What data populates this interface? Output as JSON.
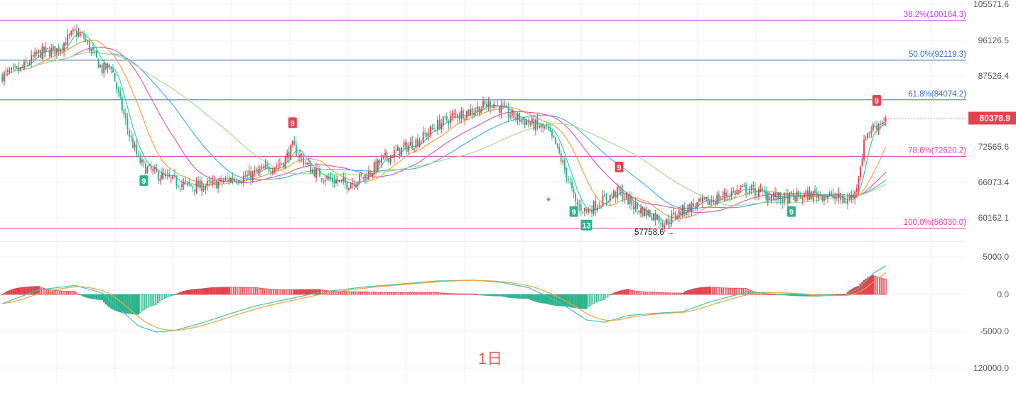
{
  "chart_data": {
    "type": "candlestick",
    "period_label": "1日",
    "price_axis": {
      "ticks": [
        "105571.6",
        "96126.5",
        "87526.4",
        "72565.6",
        "66073.4",
        "60162.1"
      ],
      "current_price": "80378.9",
      "ylim": [
        54000,
        106500
      ]
    },
    "macd_axis": {
      "ticks": [
        "5000.0",
        "0.0",
        "-5000.0",
        "120000.0"
      ]
    },
    "fib_levels": [
      {
        "label": "38.2%(100164.3)",
        "value": 100164.3,
        "color": "#b23bd1"
      },
      {
        "label": "50.0%(92119.3)",
        "value": 92119.3,
        "color": "#3a6fb5"
      },
      {
        "label": "61.8%(84074.2)",
        "value": 84074.2,
        "color": "#3a6fb5"
      },
      {
        "label": "78.6%(72620.2)",
        "value": 72620.2,
        "color": "#d63fa9"
      },
      {
        "label": "100.0%(58030.0)",
        "value": 58030.0,
        "color": "#d63fa9"
      }
    ],
    "low_annotation": "57758.6 →",
    "td_markers": [
      {
        "text": "9",
        "kind": "sell",
        "bar": 160
      },
      {
        "text": "9",
        "kind": "buy",
        "bar": 78
      },
      {
        "text": "9",
        "kind": "sell",
        "bar": 340
      },
      {
        "text": "9",
        "kind": "buy",
        "bar": 315
      },
      {
        "text": "13",
        "kind": "buy",
        "bar": 322
      },
      {
        "text": "9",
        "kind": "buy",
        "bar": 435
      },
      {
        "text": "9",
        "kind": "sell",
        "bar": 482
      }
    ],
    "colors": {
      "up": "#e2434f",
      "down": "#2bb48e",
      "ma_fast": "#3fc6b0",
      "ma_mid": "#f2a23a",
      "ma_slow": "#e05ab0",
      "ma_long": "#4aaee6",
      "ma_longest": "#a6dc8f",
      "macd_line": "#3fc6b0",
      "signal_line": "#f2a23a"
    },
    "close_path": [
      [
        0,
        89000
      ],
      [
        10,
        90200
      ],
      [
        20,
        93500
      ],
      [
        30,
        94200
      ],
      [
        40,
        97800
      ],
      [
        45,
        96600
      ],
      [
        55,
        90200
      ],
      [
        60,
        91000
      ],
      [
        64,
        85000
      ],
      [
        70,
        77000
      ],
      [
        75,
        72000
      ],
      [
        78,
        70500
      ],
      [
        85,
        69000
      ],
      [
        95,
        67500
      ],
      [
        105,
        66500
      ],
      [
        115,
        66800
      ],
      [
        125,
        68000
      ],
      [
        135,
        68500
      ],
      [
        145,
        70000
      ],
      [
        155,
        71500
      ],
      [
        160,
        74500
      ],
      [
        170,
        70000
      ],
      [
        180,
        68000
      ],
      [
        190,
        67000
      ],
      [
        200,
        68500
      ],
      [
        210,
        72000
      ],
      [
        220,
        74000
      ],
      [
        230,
        76000
      ],
      [
        240,
        79000
      ],
      [
        250,
        81000
      ],
      [
        260,
        82000
      ],
      [
        270,
        83500
      ],
      [
        280,
        81000
      ],
      [
        290,
        79500
      ],
      [
        300,
        78000
      ],
      [
        305,
        75000
      ],
      [
        312,
        68000
      ],
      [
        316,
        63000
      ],
      [
        322,
        61500
      ],
      [
        330,
        63500
      ],
      [
        340,
        65500
      ],
      [
        350,
        62000
      ],
      [
        360,
        60500
      ],
      [
        365,
        59000
      ],
      [
        372,
        61000
      ],
      [
        380,
        62500
      ],
      [
        390,
        63500
      ],
      [
        400,
        65000
      ],
      [
        410,
        66000
      ],
      [
        420,
        65000
      ],
      [
        430,
        64000
      ],
      [
        440,
        64500
      ],
      [
        450,
        65000
      ],
      [
        460,
        64200
      ],
      [
        465,
        63600
      ],
      [
        470,
        65000
      ],
      [
        473,
        71000
      ],
      [
        476,
        77000
      ],
      [
        480,
        78500
      ],
      [
        484,
        79500
      ],
      [
        487,
        80379
      ]
    ],
    "macd_path": [
      [
        0,
        -1200
      ],
      [
        20,
        600
      ],
      [
        40,
        1200
      ],
      [
        55,
        200
      ],
      [
        65,
        -2000
      ],
      [
        75,
        -4200
      ],
      [
        85,
        -5000
      ],
      [
        95,
        -4800
      ],
      [
        110,
        -3800
      ],
      [
        125,
        -2600
      ],
      [
        140,
        -1500
      ],
      [
        160,
        -500
      ],
      [
        175,
        300
      ],
      [
        200,
        1000
      ],
      [
        220,
        1400
      ],
      [
        240,
        1800
      ],
      [
        260,
        1900
      ],
      [
        275,
        1600
      ],
      [
        290,
        900
      ],
      [
        300,
        -200
      ],
      [
        312,
        -1800
      ],
      [
        322,
        -3400
      ],
      [
        332,
        -3700
      ],
      [
        345,
        -2800
      ],
      [
        360,
        -2500
      ],
      [
        375,
        -2300
      ],
      [
        390,
        -1000
      ],
      [
        410,
        300
      ],
      [
        430,
        200
      ],
      [
        450,
        -200
      ],
      [
        465,
        -100
      ],
      [
        472,
        800
      ],
      [
        480,
        2800
      ],
      [
        487,
        3800
      ]
    ]
  }
}
